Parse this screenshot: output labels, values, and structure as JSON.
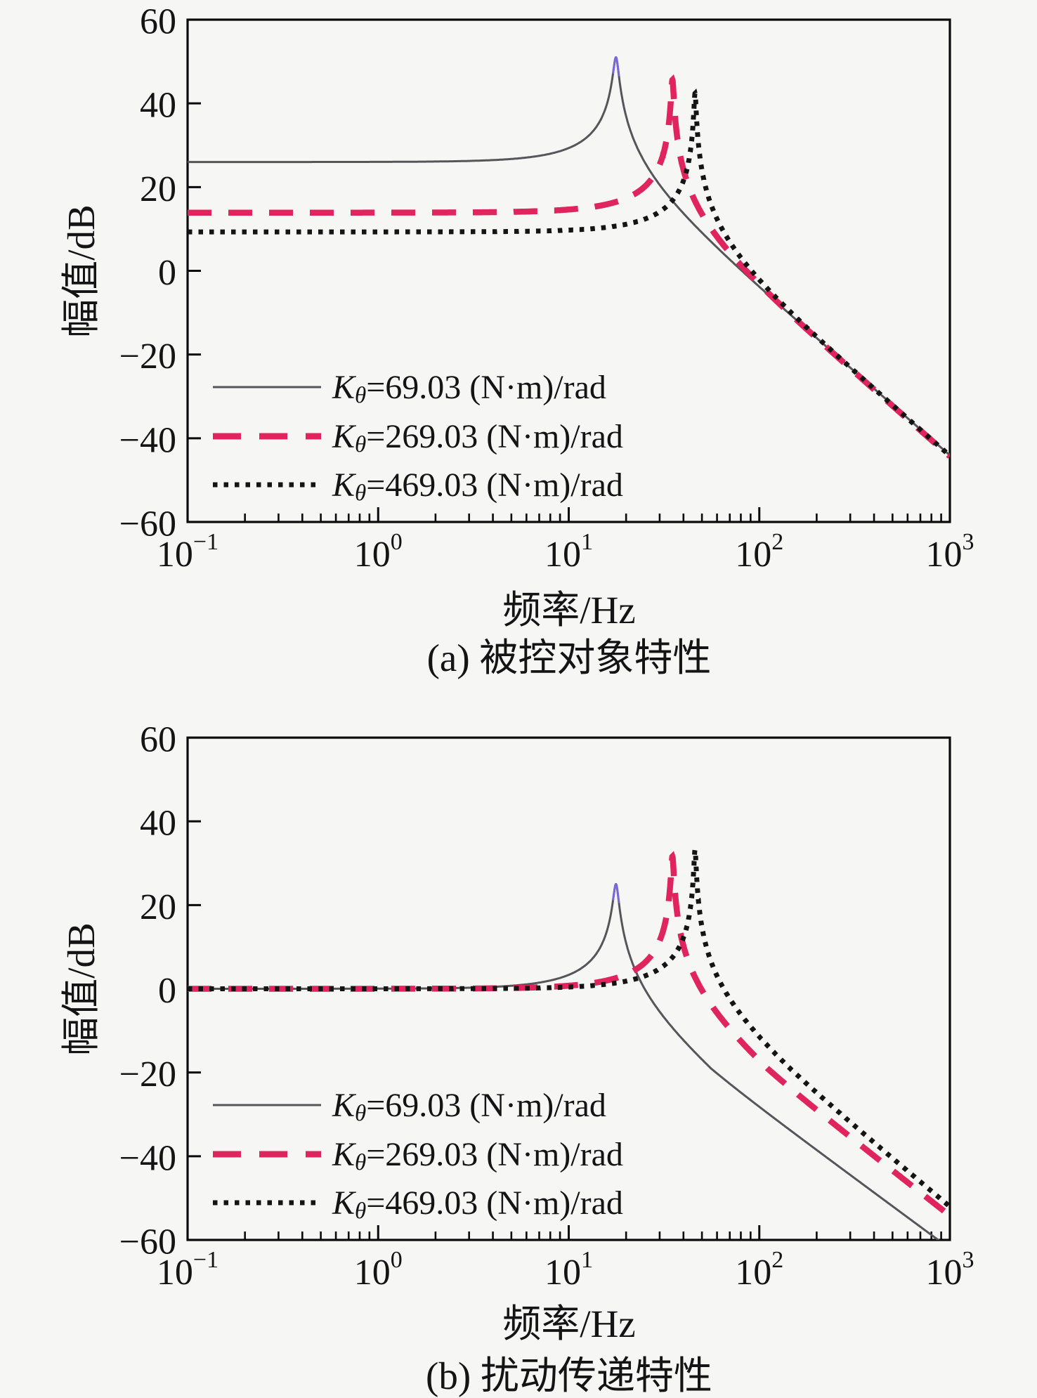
{
  "figure_background": "#f6f6f5",
  "axis_color": "#0a0a0a",
  "chart_data": [
    {
      "type": "line",
      "title": "(a) 被控对象特性",
      "xlabel": "频率/Hz",
      "ylabel": "幅值/dB",
      "x_scale": "log",
      "xlim": [
        0.1,
        1000
      ],
      "ylim": [
        -60,
        60
      ],
      "yticks": [
        60,
        40,
        20,
        0,
        -20,
        -40,
        -60
      ],
      "xtick_exponents": [
        -1,
        0,
        1,
        2,
        3
      ],
      "grid": false,
      "legend_position": "inside-lower-left",
      "series": [
        {
          "label": "Kθ=69.03 (N·m)/rad",
          "legend_k": "K",
          "legend_sub": "θ",
          "legend_rest": "=69.03 (N·m)/rad",
          "style": "solid",
          "color": "#55555a",
          "width": 3,
          "tip_color": "#7a68d8",
          "flat_db": 26.0,
          "peak_db": 51.0,
          "peak_hz": 17.7,
          "end_db_at_1kHz": -44
        },
        {
          "label": "Kθ=269.03 (N·m)/rad",
          "legend_k": "K",
          "legend_sub": "θ",
          "legend_rest": "=269.03 (N·m)/rad",
          "style": "dashed",
          "color": "#e0245e",
          "width": 8.5,
          "flat_db": 13.9,
          "peak_db": 45.6,
          "peak_hz": 35.0,
          "end_db_at_1kHz": -44
        },
        {
          "label": "Kθ=469.03 (N·m)/rad",
          "legend_k": "K",
          "legend_sub": "θ",
          "legend_rest": "=469.03 (N·m)/rad",
          "style": "dotted",
          "color": "#141414",
          "width": 7,
          "flat_db": 9.3,
          "peak_db": 42.4,
          "peak_hz": 46.0,
          "end_db_at_1kHz": -44
        }
      ]
    },
    {
      "type": "line",
      "title": "(b) 扰动传递特性",
      "xlabel": "频率/Hz",
      "ylabel": "幅值/dB",
      "x_scale": "log",
      "xlim": [
        0.1,
        1000
      ],
      "ylim": [
        -60,
        60
      ],
      "yticks": [
        60,
        40,
        20,
        0,
        -20,
        -40,
        -60
      ],
      "xtick_exponents": [
        -1,
        0,
        1,
        2,
        3
      ],
      "grid": false,
      "legend_position": "inside-lower-left",
      "series": [
        {
          "label": "Kθ=69.03 (N·m)/rad",
          "legend_k": "K",
          "legend_sub": "θ",
          "legend_rest": "=69.03 (N·m)/rad",
          "style": "solid",
          "color": "#55555a",
          "width": 3,
          "tip_color": "#7a68d8",
          "flat_db": 0.0,
          "peak_db": 25.0,
          "peak_hz": 17.7,
          "hf_lift_db_per_dec": 6.4,
          "end_db_at_1kHz": -62
        },
        {
          "label": "Kθ=269.03 (N·m)/rad",
          "legend_k": "K",
          "legend_sub": "θ",
          "legend_rest": "=269.03 (N·m)/rad",
          "style": "dashed",
          "color": "#e0245e",
          "width": 8.5,
          "flat_db": 0.0,
          "peak_db": 31.6,
          "peak_hz": 35.0,
          "hf_lift_db_per_dec": 4.2,
          "end_db_at_1kHz": -53
        },
        {
          "label": "Kθ=469.03 (N·m)/rad",
          "legend_k": "K",
          "legend_sub": "θ",
          "legend_rest": "=469.03 (N·m)/rad",
          "style": "dotted",
          "color": "#141414",
          "width": 7,
          "flat_db": 0.0,
          "peak_db": 33.2,
          "peak_hz": 46.0,
          "hf_lift_db_per_dec": 1.7,
          "end_db_at_1kHz": -48
        }
      ]
    }
  ]
}
